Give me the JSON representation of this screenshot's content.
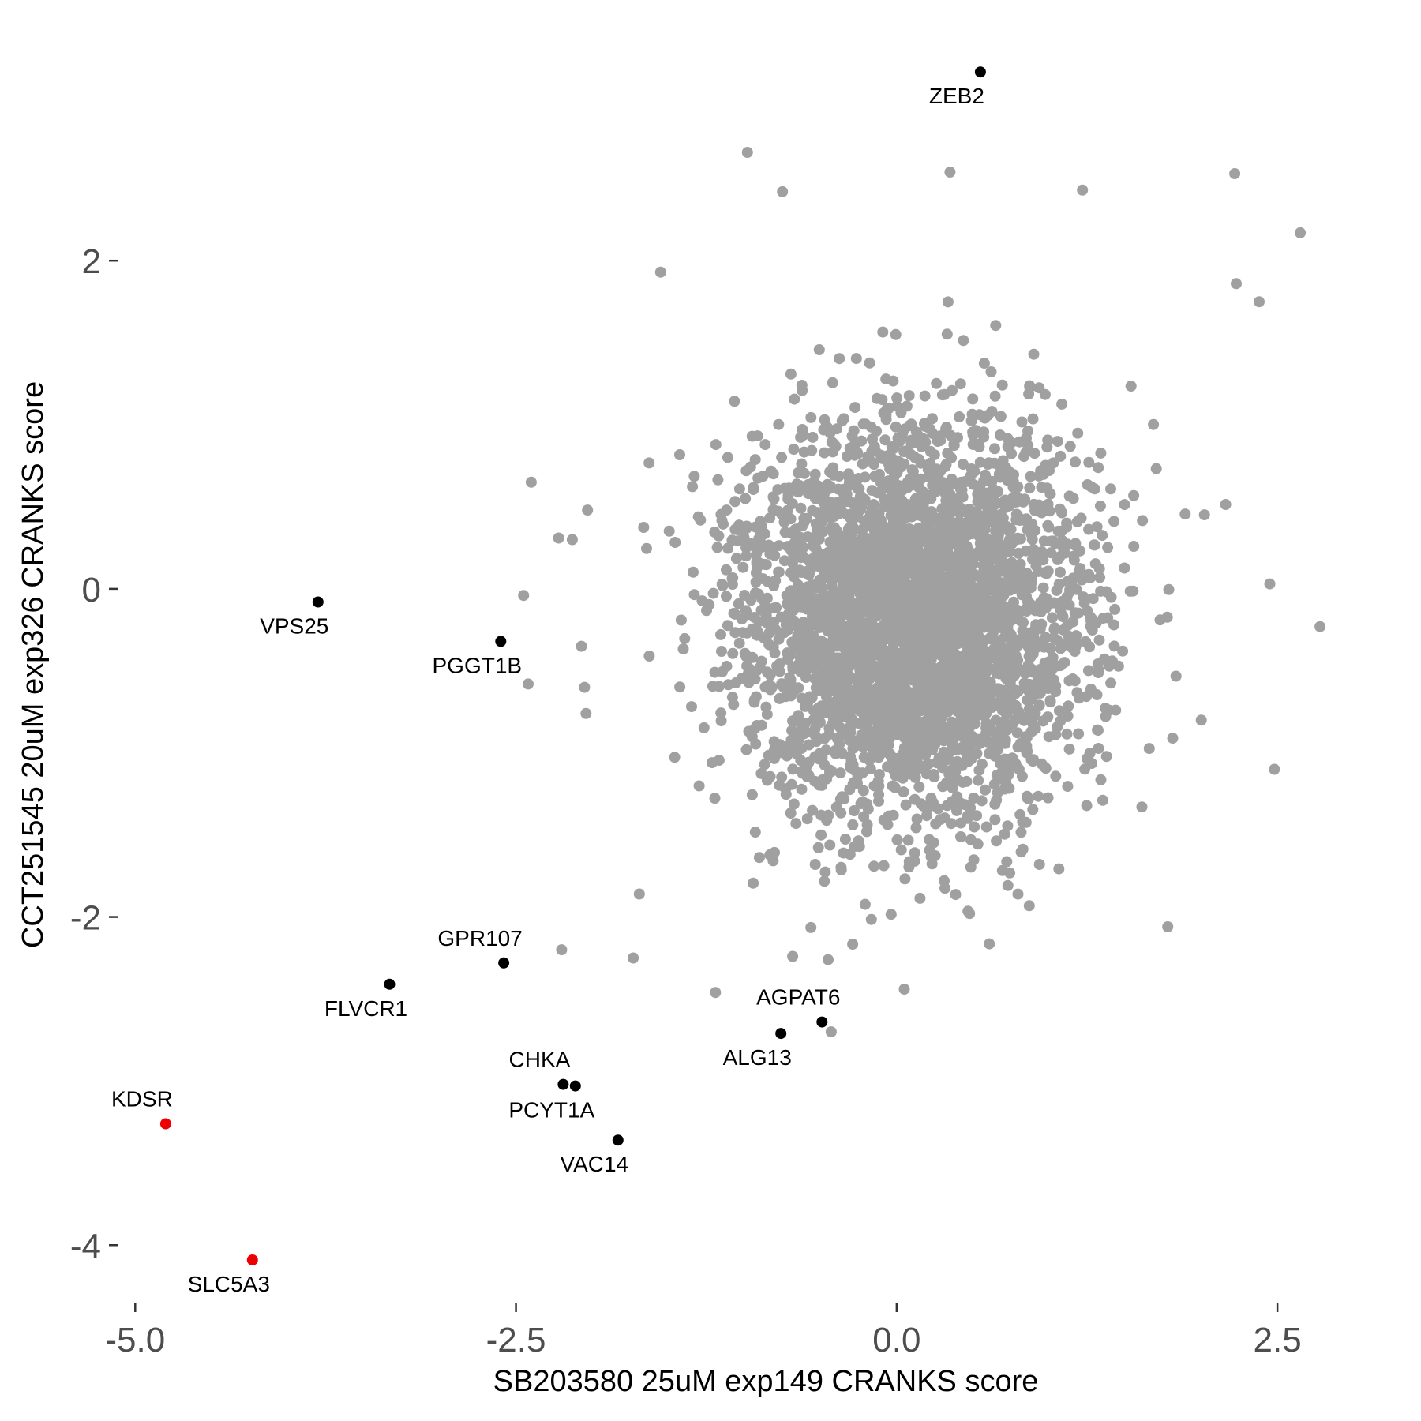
{
  "chart_data": {
    "type": "scatter",
    "title": "",
    "xlabel": "SB203580 25uM exp149 CRANKS score",
    "ylabel": "CCT251545 20uM exp326 CRANKS score",
    "xlim": [
      -5.1,
      2.8
    ],
    "ylim": [
      -4.35,
      3.3
    ],
    "xticks": [
      -5.0,
      -2.5,
      0.0,
      2.5
    ],
    "xtick_labels": [
      "-5.0",
      "-2.5",
      "0.0",
      "2.5"
    ],
    "yticks": [
      2,
      0,
      -2,
      -4
    ],
    "ytick_labels": [
      "2",
      "0",
      "-2",
      "-4"
    ],
    "grid": false,
    "legend": "none",
    "background_cloud": {
      "description": "gene scores",
      "color": "#a0a0a0",
      "count": 3800,
      "x_center": 0.1,
      "y_center": -0.2,
      "x_sd": 0.55,
      "y_sd": 0.6,
      "seed": 42
    },
    "background_points": [
      {
        "x": -0.98,
        "y": 2.66
      },
      {
        "x": 0.35,
        "y": 2.54
      },
      {
        "x": 2.22,
        "y": 2.53
      },
      {
        "x": -0.75,
        "y": 2.42
      },
      {
        "x": 1.22,
        "y": 2.43
      },
      {
        "x": 2.65,
        "y": 2.17
      },
      {
        "x": 2.23,
        "y": 1.86
      },
      {
        "x": 2.38,
        "y": 1.75
      },
      {
        "x": -1.55,
        "y": 1.93
      },
      {
        "x": -2.4,
        "y": 0.65
      },
      {
        "x": -2.22,
        "y": 0.31
      },
      {
        "x": -2.13,
        "y": 0.3
      },
      {
        "x": -2.03,
        "y": 0.48
      },
      {
        "x": -2.45,
        "y": -0.04
      },
      {
        "x": -2.42,
        "y": -0.58
      },
      {
        "x": -2.07,
        "y": -0.35
      },
      {
        "x": -2.05,
        "y": -0.6
      },
      {
        "x": -2.04,
        "y": -0.76
      },
      {
        "x": -2.2,
        "y": -2.2
      },
      {
        "x": -1.19,
        "y": -2.46
      },
      {
        "x": -0.45,
        "y": -2.26
      },
      {
        "x": 0.05,
        "y": -2.44
      },
      {
        "x": 1.78,
        "y": -2.06
      },
      {
        "x": 2.78,
        "y": -0.23
      },
      {
        "x": 2.48,
        "y": -1.1
      },
      {
        "x": -0.43,
        "y": -2.7
      },
      {
        "x": -1.73,
        "y": -2.25
      },
      {
        "x": -1.69,
        "y": -1.86
      },
      {
        "x": 2.45,
        "y": 0.03
      },
      {
        "x": 2.0,
        "y": -0.8
      }
    ],
    "highlighted_points": [
      {
        "label": "ZEB2",
        "x": 0.55,
        "y": 3.15,
        "color": "#000000",
        "label_pos": "below"
      },
      {
        "label": "VPS25",
        "x": -3.8,
        "y": -0.08,
        "color": "#000000",
        "label_pos": "below"
      },
      {
        "label": "PGGT1B",
        "x": -2.6,
        "y": -0.32,
        "color": "#000000",
        "label_pos": "below"
      },
      {
        "label": "GPR107",
        "x": -2.58,
        "y": -2.28,
        "color": "#000000",
        "label_pos": "above"
      },
      {
        "label": "FLVCR1",
        "x": -3.33,
        "y": -2.41,
        "color": "#000000",
        "label_pos": "below"
      },
      {
        "label": "AGPAT6",
        "x": -0.49,
        "y": -2.64,
        "color": "#000000",
        "label_pos": "above"
      },
      {
        "label": "ALG13",
        "x": -0.76,
        "y": -2.71,
        "color": "#000000",
        "label_pos": "below"
      },
      {
        "label": "CHKA",
        "x": -2.19,
        "y": -3.02,
        "color": "#000000",
        "label_pos": "above"
      },
      {
        "label": "PCYT1A",
        "x": -2.11,
        "y": -3.03,
        "color": "#000000",
        "label_pos": "below"
      },
      {
        "label": "VAC14",
        "x": -1.83,
        "y": -3.36,
        "color": "#000000",
        "label_pos": "below"
      },
      {
        "label": "KDSR",
        "x": -4.8,
        "y": -3.26,
        "color": "#ee0000",
        "label_pos": "above"
      },
      {
        "label": "SLC5A3",
        "x": -4.23,
        "y": -4.09,
        "color": "#ee0000",
        "label_pos": "below"
      }
    ]
  }
}
